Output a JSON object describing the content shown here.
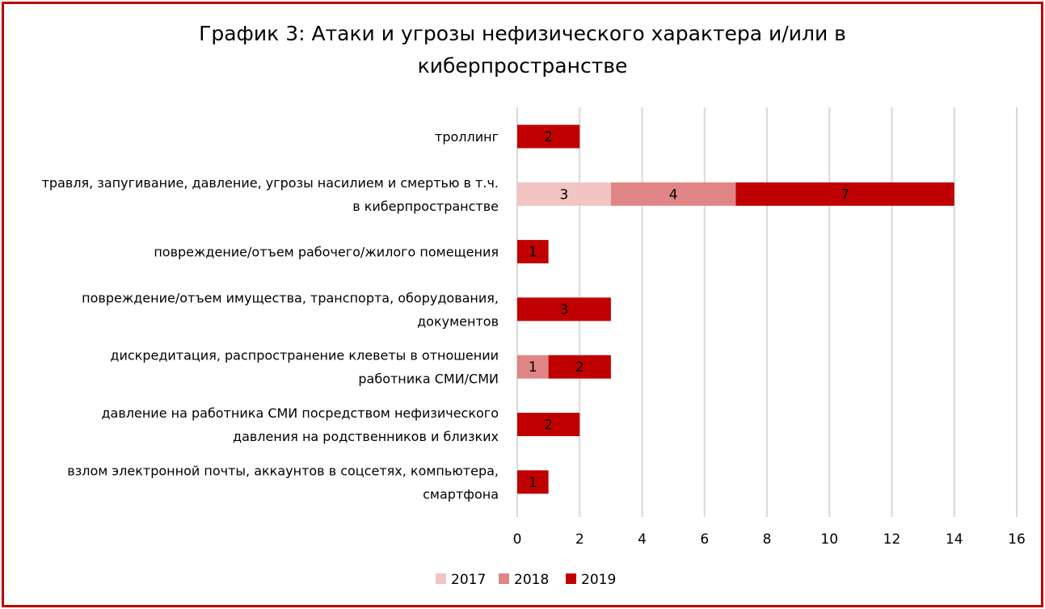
{
  "chart_data": {
    "type": "bar",
    "orientation": "horizontal",
    "stacked": true,
    "title_lines": [
      "График 3: Атаки и угрозы нефизического характера и/или в",
      "киберпространстве"
    ],
    "categories": [
      {
        "lines": [
          "троллинг"
        ]
      },
      {
        "lines": [
          "травля, запугивание, давление, угрозы насилием и смертью в т.ч.",
          "в киберпространстве"
        ]
      },
      {
        "lines": [
          "повреждение/отъем рабочего/жилого помещения"
        ]
      },
      {
        "lines": [
          "повреждение/отъем имущества, транспорта, оборудования,",
          "документов"
        ]
      },
      {
        "lines": [
          "дискредитация, распространение клеветы в отношении",
          "работника СМИ/СМИ"
        ]
      },
      {
        "lines": [
          "давление на работника СМИ посредством нефизического",
          "давления на родственников и близких"
        ]
      },
      {
        "lines": [
          "взлом электронной почты, аккаунтов в соцсетях, компьютера,",
          "смартфона"
        ]
      }
    ],
    "series": [
      {
        "name": "2017",
        "color": "#f2c4c4",
        "values": [
          0,
          3,
          0,
          0,
          0,
          0,
          0
        ]
      },
      {
        "name": "2018",
        "color": "#e08585",
        "values": [
          0,
          4,
          0,
          0,
          1,
          0,
          0
        ]
      },
      {
        "name": "2019",
        "color": "#c00000",
        "values": [
          2,
          7,
          1,
          3,
          2,
          2,
          1
        ]
      }
    ],
    "xlim": [
      0,
      16
    ],
    "xticks": [
      0,
      2,
      4,
      6,
      8,
      10,
      12,
      14,
      16
    ],
    "grid": "vertical",
    "legend": "bottom-center"
  },
  "colors": {
    "frame": "#c00000",
    "gridline": "#d9d9d9"
  }
}
